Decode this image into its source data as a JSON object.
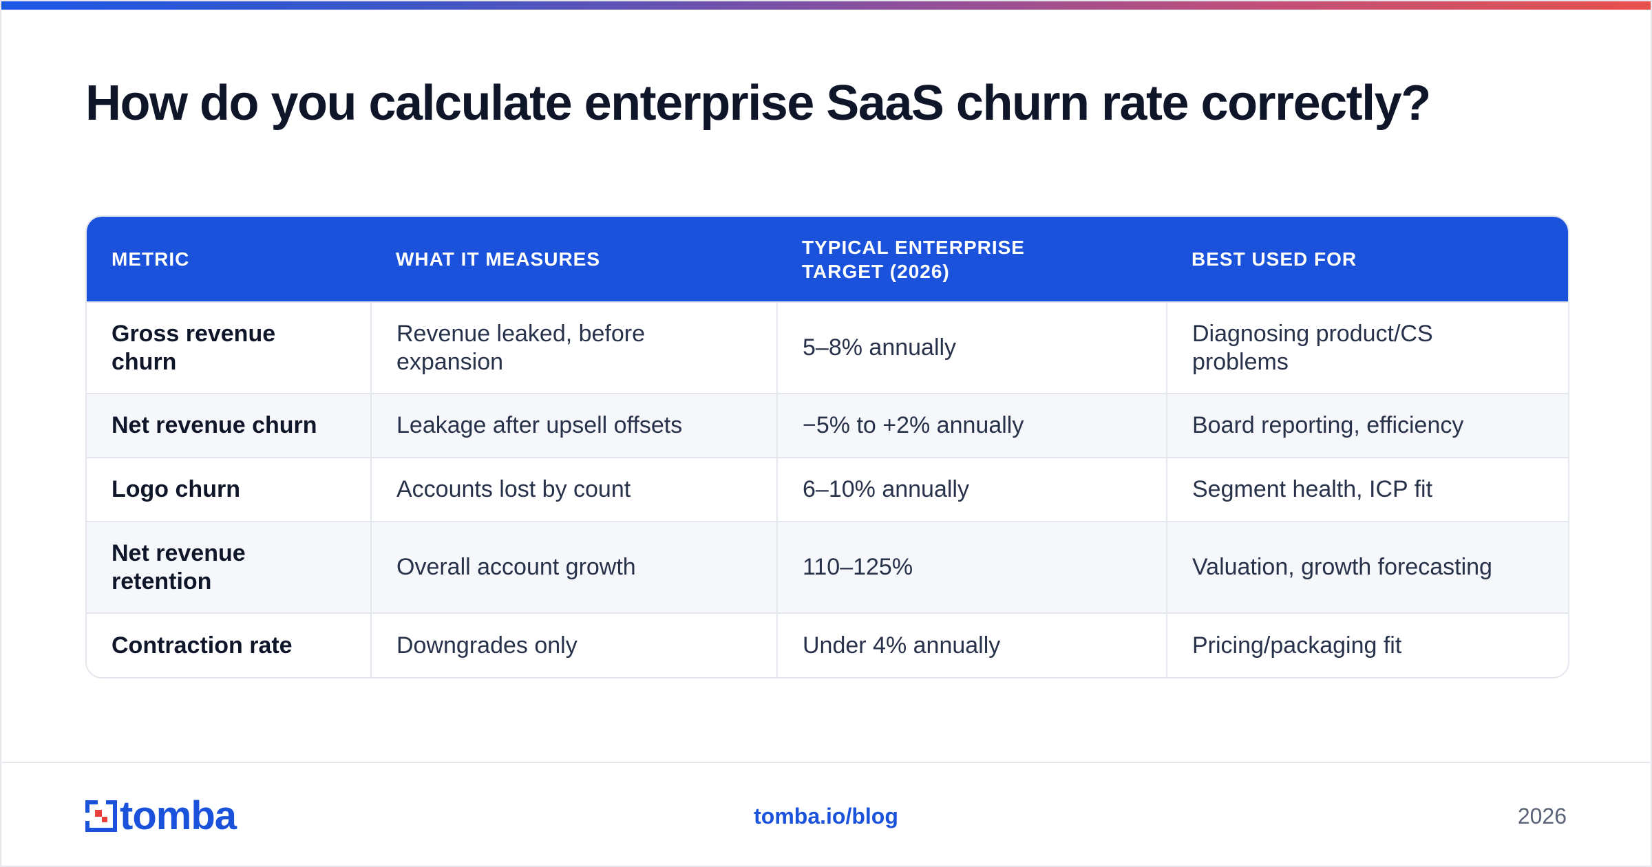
{
  "title": "How do you calculate enterprise SaaS churn rate correctly?",
  "table": {
    "headers": [
      "METRIC",
      "WHAT IT MEASURES",
      "TYPICAL ENTERPRISE TARGET (2026)",
      "BEST USED FOR"
    ],
    "rows": [
      [
        "Gross revenue churn",
        "Revenue leaked, before expansion",
        "5–8% annually",
        "Diagnosing product/CS problems"
      ],
      [
        "Net revenue churn",
        "Leakage after upsell offsets",
        "−5% to +2% annually",
        "Board reporting, efficiency"
      ],
      [
        "Logo churn",
        "Accounts lost by count",
        "6–10% annually",
        "Segment health, ICP fit"
      ],
      [
        "Net revenue retention",
        "Overall account growth",
        "110–125%",
        "Valuation, growth forecasting"
      ],
      [
        "Contraction rate",
        "Downgrades only",
        "Under 4% annually",
        "Pricing/packaging fit"
      ]
    ]
  },
  "footer": {
    "logo_text": "tomba",
    "link": "tomba.io/blog",
    "year": "2026"
  },
  "colors": {
    "accent": "#1b52db",
    "logo_red": "#e8413b",
    "title": "#0f1629"
  }
}
